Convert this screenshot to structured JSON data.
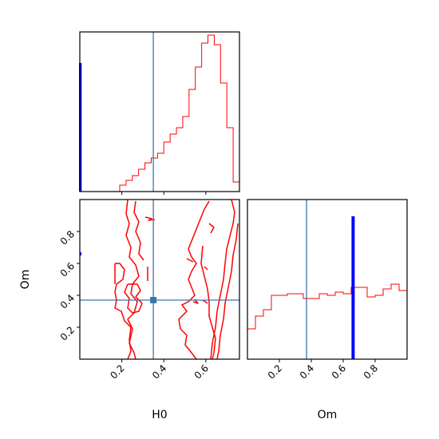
{
  "chart_data": {
    "type": "corner",
    "parameters": [
      "H0",
      "Om"
    ],
    "colors": {
      "posterior": "#ff0000",
      "prior": "#0000ff",
      "truth": "#3b75af"
    },
    "truth": {
      "H0": 0.35,
      "Om": 0.37
    },
    "panels": [
      {
        "id": "hist-h0",
        "type": "histogram",
        "xlim": [
          0,
          0.76
        ],
        "x_ticks": [
          0.2,
          0.4,
          0.6
        ],
        "series": [
          {
            "role": "posterior",
            "bin_edges": [
              0.19,
              0.22,
              0.25,
              0.28,
              0.31,
              0.34,
              0.37,
              0.4,
              0.43,
              0.46,
              0.49,
              0.52,
              0.55,
              0.58,
              0.61,
              0.64,
              0.67,
              0.7,
              0.73,
              0.76
            ],
            "counts": [
              0.04,
              0.07,
              0.1,
              0.14,
              0.18,
              0.21,
              0.24,
              0.31,
              0.36,
              0.4,
              0.47,
              0.64,
              0.78,
              0.93,
              0.98,
              0.92,
              0.68,
              0.4,
              0.06
            ]
          },
          {
            "role": "prior",
            "bin_edges": [
              0.0,
              0.005
            ],
            "counts": [
              0.8
            ]
          }
        ]
      },
      {
        "id": "scatter-h0-om",
        "type": "contour",
        "xlim": [
          0,
          0.76
        ],
        "ylim": [
          0,
          1
        ],
        "x_ticks": [
          0.2,
          0.4,
          0.6
        ],
        "y_ticks": [
          0.2,
          0.4,
          0.6,
          0.8
        ],
        "xlabel": "H0",
        "ylabel": "Om"
      },
      {
        "id": "hist-om",
        "type": "histogram",
        "xlim": [
          0,
          1
        ],
        "x_ticks": [
          0.2,
          0.4,
          0.6,
          0.8
        ],
        "xlabel": "Om",
        "series": [
          {
            "role": "posterior",
            "bin_edges": [
              0.0,
              0.05,
              0.1,
              0.15,
              0.2,
              0.25,
              0.3,
              0.35,
              0.4,
              0.45,
              0.5,
              0.55,
              0.6,
              0.65,
              0.7,
              0.75,
              0.8,
              0.85,
              0.9,
              0.95,
              1.0
            ],
            "counts": [
              0.19,
              0.27,
              0.31,
              0.4,
              0.4,
              0.41,
              0.41,
              0.38,
              0.38,
              0.41,
              0.4,
              0.42,
              0.41,
              0.45,
              0.45,
              0.39,
              0.4,
              0.44,
              0.47,
              0.43
            ]
          },
          {
            "role": "prior",
            "bin_edges": [
              0.657,
              0.667
            ],
            "counts": [
              0.89
            ]
          }
        ]
      }
    ]
  }
}
